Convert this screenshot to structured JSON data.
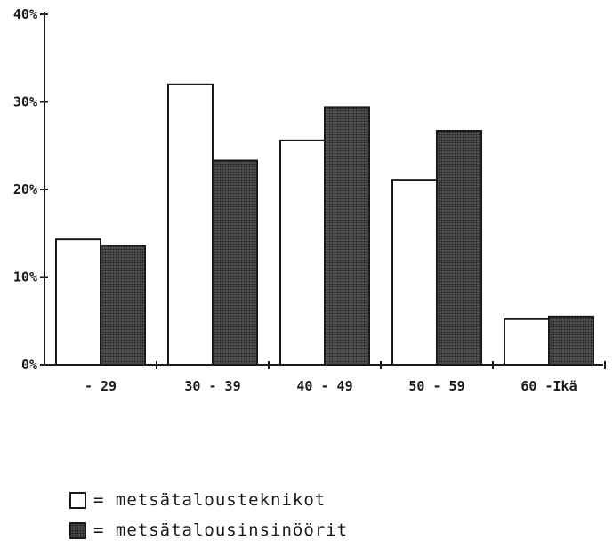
{
  "chart_data": {
    "type": "bar",
    "categories": [
      "- 29",
      "30 - 39",
      "40 - 49",
      "50 - 59",
      "60 -Ikä"
    ],
    "series": [
      {
        "name": "metsätalousteknikot",
        "values": [
          14.3,
          32.0,
          25.6,
          21.1,
          5.2
        ],
        "color": "#ffffff"
      },
      {
        "name": "metsätalousinsinöörit",
        "values": [
          13.6,
          23.3,
          29.4,
          26.7,
          5.5
        ],
        "color": "#4a4a4a"
      }
    ],
    "y_ticks": [
      "0%",
      "10%",
      "20%",
      "30%",
      "40%"
    ],
    "ylim": [
      0,
      40
    ],
    "grid": false,
    "legend_position": "bottom-left"
  },
  "legend": {
    "item1": "= metsätalousteknikot",
    "item2": "= metsätalousinsinöörit"
  }
}
